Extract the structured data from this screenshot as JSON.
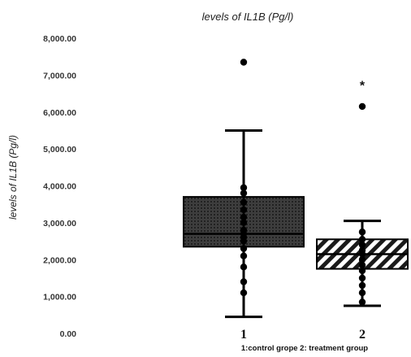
{
  "chart_data": {
    "type": "box",
    "title": "levels of IL1B (Pg/l)",
    "ylabel": "levels of IL1B (Pg/l)",
    "xlabel": "1:control grope 2: treatment group",
    "ylim": [
      0,
      8000
    ],
    "y_ticks": [
      "0.00",
      "1,000.00",
      "2,000.00",
      "3,000.00",
      "4,000.00",
      "5,000.00",
      "6,000.00",
      "7,000.00",
      "8,000.00"
    ],
    "categories": [
      "1",
      "2"
    ],
    "significance_marker": "*",
    "significance_group": "2",
    "groups": [
      {
        "category": "1",
        "fill": "cross-hatch (dark)",
        "min": 450,
        "q1": 2350,
        "median": 2700,
        "q3": 3700,
        "max": 5500,
        "outliers": [
          7350
        ],
        "points": [
          1100,
          1400,
          1800,
          2100,
          2300,
          2500,
          2600,
          2700,
          2800,
          3000,
          3150,
          3350,
          3550,
          3800,
          3950
        ]
      },
      {
        "category": "2",
        "fill": "diagonal stripes",
        "min": 750,
        "q1": 1750,
        "median": 2150,
        "q3": 2550,
        "max": 3050,
        "outliers": [
          6150
        ],
        "points": [
          850,
          1100,
          1300,
          1500,
          1700,
          1850,
          2000,
          2150,
          2250,
          2400,
          2550,
          2750
        ]
      }
    ]
  }
}
